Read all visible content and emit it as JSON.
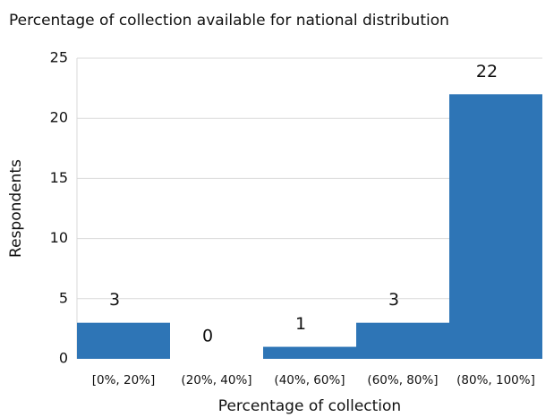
{
  "chart_data": {
    "type": "bar",
    "title": "Percentage of collection available for national distribution",
    "x_label": "Percentage of collection",
    "y_label": "Respondents",
    "categories": [
      "[0%, 20%]",
      "(20%, 40%]",
      "(40%, 60%]",
      "(60%, 80%]",
      "(80%, 100%]"
    ],
    "values": [
      3,
      0,
      1,
      3,
      22
    ],
    "color": "#2e75b6",
    "ylim": [
      0,
      25
    ],
    "yticks": [
      0,
      5,
      10,
      15,
      20,
      25
    ],
    "grid": true
  }
}
